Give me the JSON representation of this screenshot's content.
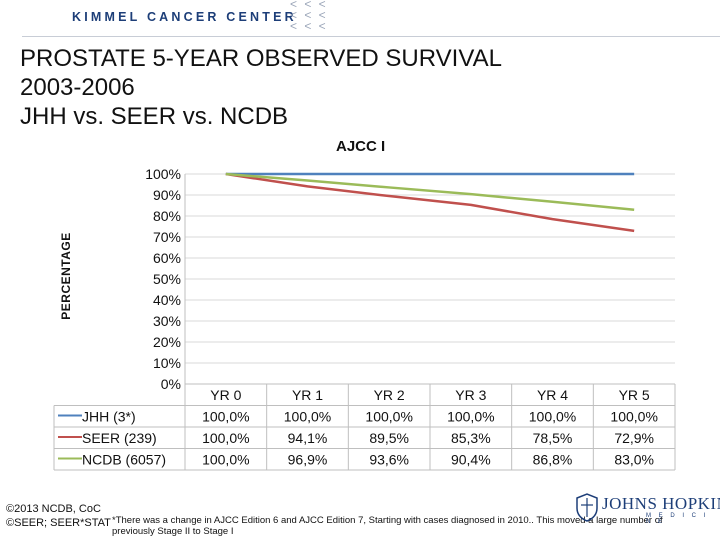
{
  "header": {
    "brand": "KIMMEL CANCER CENTER",
    "chevrons": "< < <\n< < <\n< < <"
  },
  "title_lines": [
    "PROSTATE 5-YEAR OBSERVED SURVIVAL",
    "2003-2006",
    "JHH vs. SEER vs. NCDB"
  ],
  "chart_data": {
    "type": "line",
    "title": "AJCC I",
    "ylabel": "PERCENTAGE",
    "xlabel": "",
    "categories": [
      "YR 0",
      "YR 1",
      "YR 2",
      "YR 3",
      "YR 4",
      "YR 5"
    ],
    "ylim": [
      0,
      100
    ],
    "y_ticks": [
      "100%",
      "90%",
      "80%",
      "70%",
      "60%",
      "50%",
      "40%",
      "30%",
      "20%",
      "10%",
      "0%"
    ],
    "grid": "horizontal",
    "legend": "data-table-below",
    "series": [
      {
        "name": "JHH (3*)",
        "color": "#4f81bd",
        "values": [
          100,
          100,
          100,
          100,
          100,
          100
        ],
        "labels": [
          "100,0%",
          "100,0%",
          "100,0%",
          "100,0%",
          "100,0%",
          "100,0%"
        ]
      },
      {
        "name": "SEER (239)",
        "color": "#c0504d",
        "values": [
          100,
          94.1,
          89.5,
          85.3,
          78.5,
          72.9
        ],
        "labels": [
          "100,0%",
          "94,1%",
          "89,5%",
          "85,3%",
          "78,5%",
          "72,9%"
        ]
      },
      {
        "name": "NCDB (6057)",
        "color": "#9bbb59",
        "values": [
          100,
          96.9,
          93.6,
          90.4,
          86.8,
          83.0
        ],
        "labels": [
          "100,0%",
          "96,9%",
          "93,6%",
          "90,4%",
          "86,8%",
          "83,0%"
        ]
      }
    ]
  },
  "footer": {
    "line1": "©2013 NCDB, CoC",
    "line2": "©SEER; SEER*STAT",
    "footnote": "*There was a change in AJCC Edition 6 and AJCC Edition 7, Starting with cases diagnosed in 2010.. This moved a large number of previously Stage II to Stage I"
  },
  "logo": {
    "text": "JOHNS HOPKINS",
    "sub": "M E D I C I N E"
  }
}
